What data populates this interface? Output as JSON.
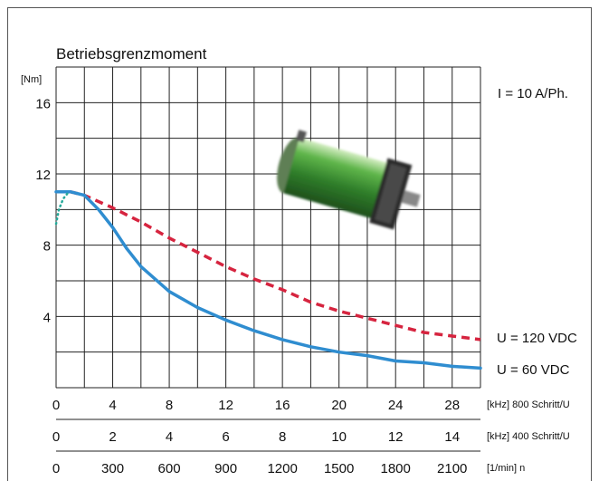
{
  "chart_data": {
    "type": "line",
    "title": "Betriebsgrenzmoment",
    "y_unit": "[Nm]",
    "ylim": [
      0,
      18
    ],
    "y_ticks": [
      4,
      8,
      12,
      16
    ],
    "grid": true,
    "annotation": "I = 10 A/Ph.",
    "x_axes": [
      {
        "ticks": [
          "0",
          "4",
          "8",
          "12",
          "16",
          "20",
          "24",
          "28"
        ],
        "label": "[kHz] 800 Schritt/U",
        "lim": [
          0,
          30
        ]
      },
      {
        "ticks": [
          "0",
          "2",
          "4",
          "6",
          "8",
          "10",
          "12",
          "14"
        ],
        "label": "[kHz] 400 Schritt/U",
        "lim": [
          0,
          15
        ]
      },
      {
        "ticks": [
          "0",
          "300",
          "600",
          "900",
          "1200",
          "1500",
          "1800",
          "2100"
        ],
        "label": "[1/min] n",
        "lim": [
          0,
          2250
        ]
      }
    ],
    "series": [
      {
        "name": "U = 120 VDC",
        "color": "#d6243f",
        "style": "dashed",
        "x": [
          0,
          1,
          2,
          4,
          6,
          8,
          10,
          12,
          14,
          16,
          18,
          20,
          22,
          24,
          26,
          28,
          30
        ],
        "y": [
          11.0,
          11.0,
          10.8,
          10.1,
          9.3,
          8.4,
          7.6,
          6.8,
          6.1,
          5.5,
          4.8,
          4.3,
          3.9,
          3.5,
          3.1,
          2.9,
          2.7
        ]
      },
      {
        "name": "U = 60 VDC",
        "color": "#2f8dd0",
        "style": "solid",
        "x": [
          0,
          1,
          2,
          3,
          4,
          5,
          6,
          8,
          10,
          12,
          14,
          16,
          18,
          20,
          22,
          24,
          26,
          28,
          30
        ],
        "y": [
          11.0,
          11.0,
          10.8,
          10.0,
          9.0,
          7.8,
          6.8,
          5.4,
          4.5,
          3.8,
          3.2,
          2.7,
          2.3,
          2.0,
          1.8,
          1.5,
          1.4,
          1.2,
          1.1
        ]
      },
      {
        "name": "",
        "color": "#27a99a",
        "style": "dotted",
        "x": [
          0,
          0.2,
          0.5,
          0.9
        ],
        "y": [
          9.2,
          10.0,
          10.6,
          11.0
        ]
      }
    ]
  }
}
